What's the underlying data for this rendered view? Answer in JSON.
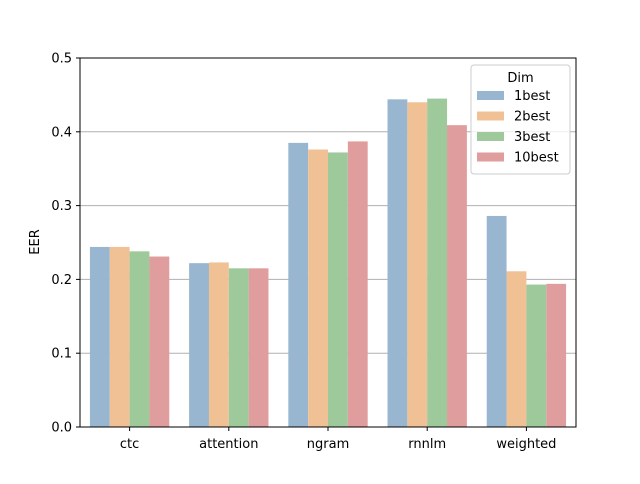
{
  "chart_data": {
    "type": "bar",
    "title": "",
    "xlabel": "",
    "ylabel": "EER",
    "ylim": [
      0,
      0.5
    ],
    "yticks": [
      "0.0",
      "0.1",
      "0.2",
      "0.3",
      "0.4",
      "0.5"
    ],
    "grid": "horizontal",
    "categories": [
      "ctc",
      "attention",
      "ngram",
      "rnnlm",
      "weighted"
    ],
    "legend": {
      "title": "Dim",
      "placement": "top-right"
    },
    "series": [
      {
        "name": "1best",
        "color": "#98b6cf",
        "values": [
          0.244,
          0.222,
          0.385,
          0.444,
          0.286
        ]
      },
      {
        "name": "2best",
        "color": "#f1c196",
        "values": [
          0.244,
          0.223,
          0.376,
          0.44,
          0.211
        ]
      },
      {
        "name": "3best",
        "color": "#9dc99b",
        "values": [
          0.238,
          0.215,
          0.372,
          0.445,
          0.193
        ]
      },
      {
        "name": "10best",
        "color": "#e09d9d",
        "values": [
          0.231,
          0.215,
          0.387,
          0.409,
          0.194
        ]
      }
    ]
  }
}
